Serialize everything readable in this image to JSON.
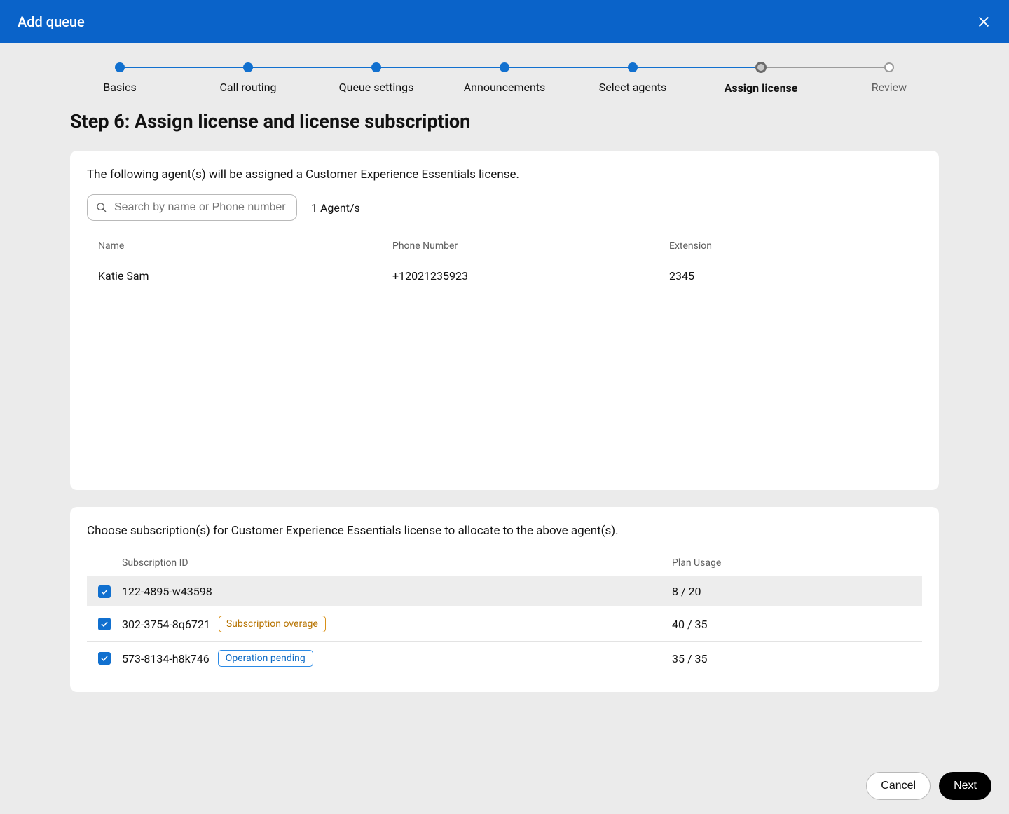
{
  "header": {
    "title": "Add queue"
  },
  "stepper": {
    "steps": [
      {
        "label": "Basics",
        "state": "done"
      },
      {
        "label": "Call routing",
        "state": "done"
      },
      {
        "label": "Queue settings",
        "state": "done"
      },
      {
        "label": "Announcements",
        "state": "done"
      },
      {
        "label": "Select agents",
        "state": "done"
      },
      {
        "label": "Assign license",
        "state": "current"
      },
      {
        "label": "Review",
        "state": "future"
      }
    ]
  },
  "page": {
    "title": "Step 6: Assign license and license subscription"
  },
  "agents_card": {
    "description": "The following agent(s) will be assigned a Customer Experience Essentials license.",
    "search_placeholder": "Search by name or Phone number",
    "count_text": "1 Agent/s",
    "columns": {
      "name": "Name",
      "phone": "Phone Number",
      "ext": "Extension"
    },
    "rows": [
      {
        "name": "Katie Sam",
        "phone": "+12021235923",
        "ext": "2345"
      }
    ]
  },
  "subs_card": {
    "description": "Choose subscription(s) for Customer Experience Essentials license to allocate to the above agent(s).",
    "columns": {
      "id": "Subscription ID",
      "usage": "Plan Usage"
    },
    "rows": [
      {
        "id": "122-4895-w43598",
        "usage": "8 / 20",
        "checked": true,
        "selected": true,
        "badge": null
      },
      {
        "id": "302-3754-8q6721",
        "usage": "40 / 35",
        "checked": true,
        "selected": false,
        "badge": {
          "text": "Subscription overage",
          "type": "warning"
        }
      },
      {
        "id": "573-8134-h8k746",
        "usage": "35 / 35",
        "checked": true,
        "selected": false,
        "badge": {
          "text": "Operation pending",
          "type": "info"
        }
      }
    ]
  },
  "footer": {
    "cancel": "Cancel",
    "next": "Next"
  },
  "colors": {
    "header_bg": "#0a63c9",
    "body_bg": "#ebebeb",
    "primary": "#1170cf",
    "badge_warning_border": "#d99118",
    "badge_info_border": "#2a8ae6"
  }
}
